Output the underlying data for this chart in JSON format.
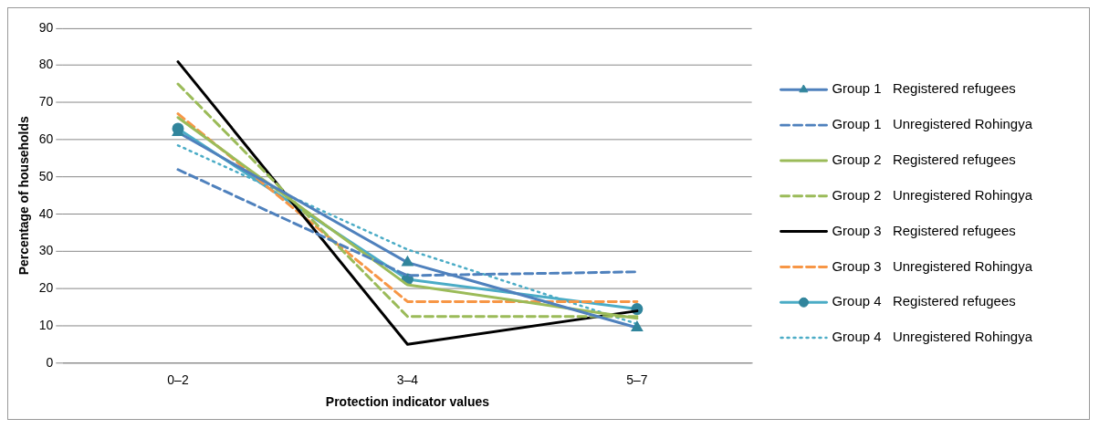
{
  "chart_data": {
    "type": "line",
    "xlabel": "Protection indicator values",
    "ylabel": "Percentage of households",
    "categories": [
      "0–2",
      "3–4",
      "5–7"
    ],
    "ylim": [
      0,
      90
    ],
    "yticks": [
      0,
      10,
      20,
      30,
      40,
      50,
      60,
      70,
      80,
      90
    ],
    "grid": "y",
    "legend": "right",
    "series": [
      {
        "name": "Group 1   Registered refugees",
        "color": "#4f81bd",
        "values": [
          62,
          27,
          9.5
        ],
        "marker": "triangle",
        "line_style": "solid"
      },
      {
        "name": "Group 1   Unregistered Rohingya",
        "color": "#4f81bd",
        "values": [
          52,
          23.5,
          24.5
        ],
        "marker": "none",
        "line_style": "dashed"
      },
      {
        "name": "Group 2   Registered refugees",
        "color": "#9bbb59",
        "values": [
          66,
          21,
          12
        ],
        "marker": "none",
        "line_style": "solid"
      },
      {
        "name": "Group 2   Unregistered Rohingya",
        "color": "#9bbb59",
        "values": [
          75,
          12.5,
          12.5
        ],
        "marker": "none",
        "line_style": "dashed"
      },
      {
        "name": "Group 3   Registered refugees",
        "color": "#000000",
        "values": [
          81,
          5,
          14
        ],
        "marker": "none",
        "line_style": "solid"
      },
      {
        "name": "Group 3   Unregistered Rohingya",
        "color": "#f79646",
        "values": [
          67,
          16.5,
          16.5
        ],
        "marker": "none",
        "line_style": "dashed"
      },
      {
        "name": "Group 4   Registered refugees",
        "color": "#4bacc6",
        "values": [
          63,
          22.5,
          14.5
        ],
        "marker": "circle",
        "line_style": "solid"
      },
      {
        "name": "Group 4   Unregistered Rohingya",
        "color": "#4bacc6",
        "values": [
          58.5,
          30.5,
          10.5
        ],
        "marker": "none",
        "line_style": "dotted"
      }
    ]
  }
}
